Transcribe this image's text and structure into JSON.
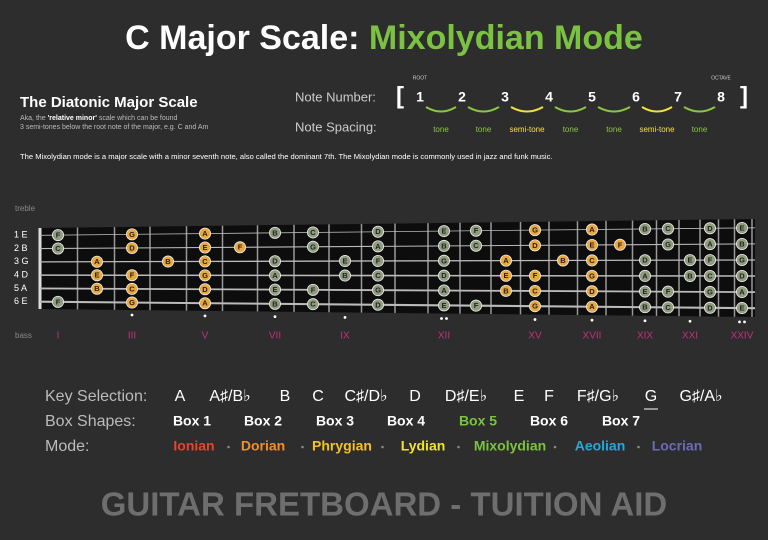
{
  "title": {
    "parts": [
      {
        "text": "C Major Scale: ",
        "color": "#ffffff"
      },
      {
        "text": "Mixolydian Mode",
        "color": "#7cc242"
      }
    ]
  },
  "diatonic": {
    "title": "The Diatonic Major Scale",
    "line1": [
      "Aka, the ",
      "'relative minor'",
      " scale which can be found"
    ],
    "line2": "3 semi-tones below the root note of the major, e.g. C and Am"
  },
  "note_number": {
    "label": "Note Number:",
    "open": "[",
    "close": "]",
    "numbers": [
      "1",
      "2",
      "3",
      "4",
      "5",
      "6",
      "7",
      "8"
    ],
    "root": "ROOT",
    "octave": "OCTAVE"
  },
  "note_spacing": {
    "label": "Note Spacing:",
    "steps": [
      {
        "text": "tone",
        "color": "#8dc63f"
      },
      {
        "text": "tone",
        "color": "#8dc63f"
      },
      {
        "text": "semi-tone",
        "color": "#f2e23a"
      },
      {
        "text": "tone",
        "color": "#8dc63f"
      },
      {
        "text": "tone",
        "color": "#8dc63f"
      },
      {
        "text": "semi-tone",
        "color": "#f2e23a"
      },
      {
        "text": "tone",
        "color": "#8dc63f"
      }
    ]
  },
  "description": "The Mixolydian mode is a major scale with a minor seventh note, also called the dominant 7th. The Mixolydian mode is commonly used in jazz and funk music.",
  "fretboard": {
    "treble": "treble",
    "bass": "bass",
    "note_color": "#8f9c7e",
    "box_color": "#e9a73c",
    "strings": [
      {
        "label": "1 E",
        "frets": [
          1,
          3,
          5,
          7,
          8,
          10,
          12,
          13,
          15,
          17,
          19,
          20,
          22,
          24
        ],
        "notes": [
          "F",
          "G",
          "A",
          "B",
          "C",
          "D",
          "E",
          "F",
          "G",
          "A",
          "B",
          "C",
          "D",
          "E"
        ],
        "box": [
          false,
          true,
          true,
          false,
          false,
          false,
          false,
          false,
          true,
          true,
          false,
          false,
          false,
          false
        ]
      },
      {
        "label": "2 B",
        "frets": [
          1,
          3,
          5,
          6,
          8,
          10,
          12,
          13,
          15,
          17,
          18,
          20,
          22,
          24
        ],
        "notes": [
          "C",
          "D",
          "E",
          "F",
          "G",
          "A",
          "B",
          "C",
          "D",
          "E",
          "F",
          "G",
          "A",
          "B"
        ],
        "box": [
          false,
          true,
          true,
          true,
          false,
          false,
          false,
          false,
          true,
          true,
          true,
          false,
          false,
          false
        ]
      },
      {
        "label": "3 G",
        "frets": [
          2,
          4,
          5,
          7,
          9,
          10,
          12,
          14,
          16,
          17,
          19,
          21,
          22,
          24
        ],
        "notes": [
          "A",
          "B",
          "C",
          "D",
          "E",
          "F",
          "G",
          "A",
          "B",
          "C",
          "D",
          "E",
          "F",
          "G"
        ],
        "box": [
          true,
          true,
          true,
          false,
          false,
          false,
          false,
          true,
          true,
          true,
          false,
          false,
          false,
          false
        ]
      },
      {
        "label": "4 D",
        "frets": [
          2,
          3,
          5,
          7,
          9,
          10,
          12,
          14,
          15,
          17,
          19,
          21,
          22,
          24
        ],
        "notes": [
          "E",
          "F",
          "G",
          "A",
          "B",
          "C",
          "D",
          "E",
          "F",
          "G",
          "A",
          "B",
          "C",
          "D"
        ],
        "box": [
          true,
          true,
          true,
          false,
          false,
          false,
          false,
          true,
          true,
          true,
          false,
          false,
          false,
          false
        ]
      },
      {
        "label": "5 A",
        "frets": [
          2,
          3,
          5,
          7,
          8,
          10,
          12,
          14,
          15,
          17,
          19,
          20,
          22,
          24
        ],
        "notes": [
          "B",
          "C",
          "D",
          "E",
          "F",
          "G",
          "A",
          "B",
          "C",
          "D",
          "E",
          "F",
          "G",
          "A"
        ],
        "box": [
          true,
          true,
          true,
          false,
          false,
          false,
          false,
          true,
          true,
          true,
          false,
          false,
          false,
          false
        ]
      },
      {
        "label": "6 E",
        "frets": [
          1,
          3,
          5,
          7,
          8,
          10,
          12,
          13,
          15,
          17,
          19,
          20,
          22,
          24
        ],
        "notes": [
          "F",
          "G",
          "A",
          "B",
          "C",
          "D",
          "E",
          "F",
          "G",
          "A",
          "B",
          "C",
          "D",
          "E"
        ],
        "box": [
          false,
          true,
          true,
          false,
          false,
          false,
          false,
          false,
          true,
          true,
          false,
          false,
          false,
          false
        ]
      }
    ],
    "markers": [
      {
        "fret": 1,
        "label": "I"
      },
      {
        "fret": 3,
        "label": "III"
      },
      {
        "fret": 5,
        "label": "V"
      },
      {
        "fret": 7,
        "label": "VII"
      },
      {
        "fret": 9,
        "label": "IX"
      },
      {
        "fret": 12,
        "label": "XII"
      },
      {
        "fret": 15,
        "label": "XV"
      },
      {
        "fret": 17,
        "label": "XVII"
      },
      {
        "fret": 19,
        "label": "XIX"
      },
      {
        "fret": 21,
        "label": "XXI"
      },
      {
        "fret": 24,
        "label": "XXIV"
      }
    ]
  },
  "key_selection": {
    "label": "Key Selection:",
    "keys": [
      "A",
      "A♯/B♭",
      "B",
      "C",
      "C♯/D♭",
      "D",
      "D♯/E♭",
      "E",
      "F",
      "F♯/G♭",
      "G",
      "G♯/A♭"
    ],
    "selected": 10
  },
  "box_shapes": {
    "label": "Box Shapes:",
    "boxes": [
      "Box 1",
      "Box 2",
      "Box 3",
      "Box 4",
      "Box 5",
      "Box 6",
      "Box 7"
    ],
    "selected": 4,
    "selected_color": "#7cc242"
  },
  "mode": {
    "label": "Mode:",
    "modes": [
      {
        "text": "Ionian",
        "color": "#e8432e"
      },
      {
        "text": "Dorian",
        "color": "#f0902a"
      },
      {
        "text": "Phrygian",
        "color": "#f3c226"
      },
      {
        "text": "Lydian",
        "color": "#efe52a"
      },
      {
        "text": "Mixolydian",
        "color": "#7cc242"
      },
      {
        "text": "Aeolian",
        "color": "#2aa6d9"
      },
      {
        "text": "Locrian",
        "color": "#6d6ab8"
      }
    ]
  },
  "footer": "GUITAR FRETBOARD - TUITION AID"
}
